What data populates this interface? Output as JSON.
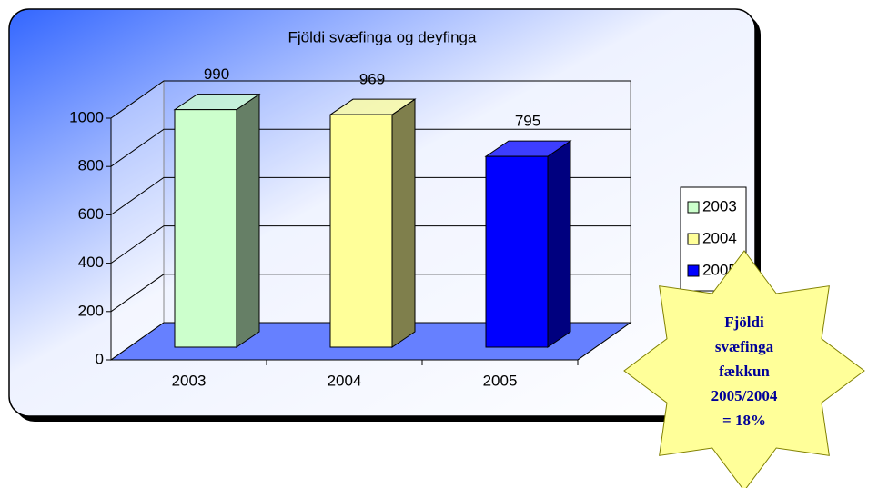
{
  "chart_data": {
    "type": "bar3d",
    "title": "Fjöldi svæfinga og deyfinga",
    "categories": [
      "2003",
      "2004",
      "2005"
    ],
    "values": [
      990,
      969,
      795
    ],
    "colors": [
      "#ccffcc",
      "#ffff99",
      "#0000ff"
    ],
    "ylim": [
      0,
      1000
    ],
    "yticks": [
      0,
      200,
      400,
      600,
      800,
      1000
    ],
    "grid": true,
    "legend": "right",
    "annotation": [
      "Fjöldi",
      "svæfinga",
      "fækkun",
      "2005/2004",
      "= 18%"
    ]
  }
}
